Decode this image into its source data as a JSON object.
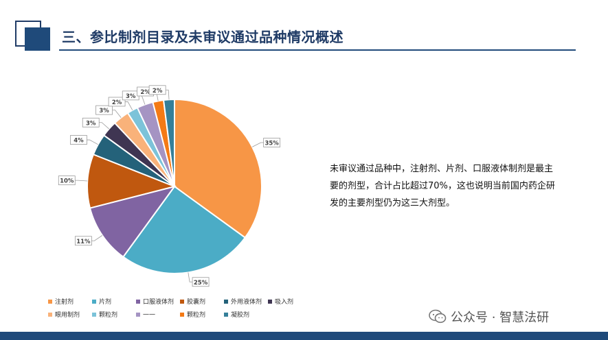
{
  "header": {
    "title": "三、参比制剂目录及未审议通过品种情况概述"
  },
  "description": "未审议通过品种中，注射剂、片剂、口服液体制剂是最主要的剂型，合计占比超过70%，这也说明当前国内药企研发的主要剂型仍为这三大剂型。",
  "watermark": {
    "text": "公众号 · 智慧法研",
    "icon": "wechat-icon"
  },
  "colors": {
    "title": "#1f3b66",
    "band": "#1f4a7a"
  },
  "chart_data": {
    "type": "pie",
    "title": "",
    "legend_position": "bottom",
    "categories": [
      "注射剂",
      "片剂",
      "口服液体剂",
      "胶囊剂",
      "外用液体剂",
      "吸入剂",
      "眼用制剂",
      "颗粒剂",
      "一一",
      "颗粒剂",
      "凝胶剂"
    ],
    "values": [
      35,
      25,
      11,
      10,
      4,
      3,
      3,
      2,
      3,
      2,
      2
    ],
    "labels": [
      "35%",
      "25%",
      "11%",
      "10%",
      "4%",
      "3%",
      "3%",
      "2%",
      "3%",
      "2%",
      "2%"
    ],
    "colors": [
      "#f79646",
      "#4bacc6",
      "#8064a2",
      "#c0580f",
      "#24627a",
      "#3f3552",
      "#f9b27a",
      "#7cc3d9",
      "#a594c3",
      "#f47a15",
      "#357f99"
    ]
  }
}
